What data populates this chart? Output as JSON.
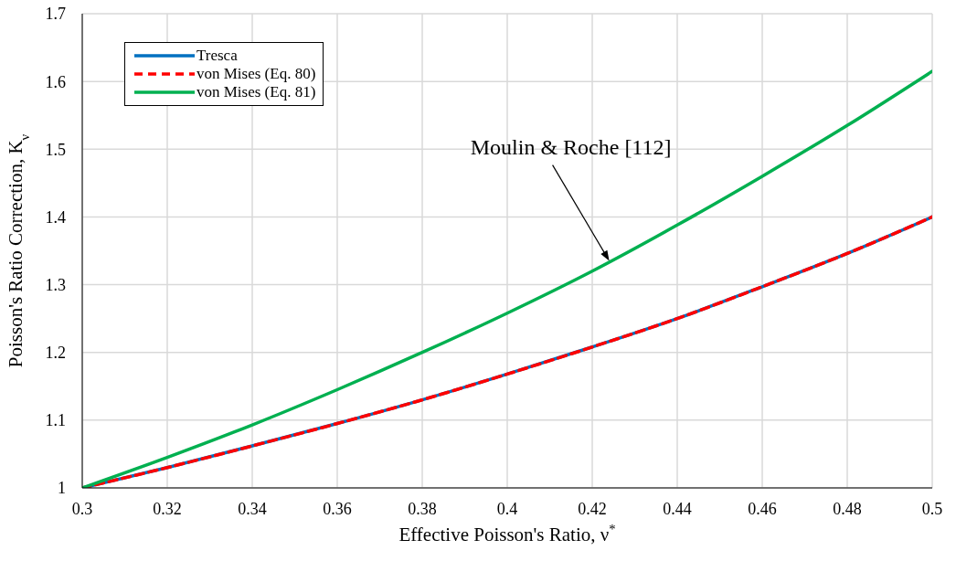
{
  "chart_data": {
    "type": "line",
    "xlabel": "Effective Poisson's Ratio, ν$^{*}$",
    "ylabel": "Poisson's Ratio Correction, K$_{ν}$",
    "x": [
      0.3,
      0.32,
      0.34,
      0.36,
      0.38,
      0.4,
      0.42,
      0.44,
      0.46,
      0.48,
      0.5
    ],
    "series": [
      {
        "name": "Tresca",
        "color": "#0070c0",
        "values": [
          1.0,
          1.03,
          1.062,
          1.095,
          1.13,
          1.168,
          1.208,
          1.25,
          1.297,
          1.346,
          1.4
        ]
      },
      {
        "name": "von Mises (Eq. 80)",
        "color": "#ff0000",
        "line_style": "dashed",
        "values": [
          1.0,
          1.03,
          1.062,
          1.095,
          1.13,
          1.168,
          1.208,
          1.25,
          1.297,
          1.346,
          1.4
        ]
      },
      {
        "name": "von Mises (Eq. 81)",
        "color": "#00b050",
        "values": [
          1.0,
          1.045,
          1.093,
          1.145,
          1.2,
          1.258,
          1.32,
          1.388,
          1.46,
          1.535,
          1.615
        ]
      }
    ],
    "xlim": [
      0.3,
      0.5
    ],
    "xticks": [
      0.3,
      0.32,
      0.34,
      0.36,
      0.38,
      0.4,
      0.42,
      0.44,
      0.46,
      0.48,
      0.5
    ],
    "ylim": [
      1,
      1.7
    ],
    "yticks": [
      1,
      1.1,
      1.2,
      1.3,
      1.4,
      1.5,
      1.6,
      1.7
    ],
    "grid": true,
    "legend": "top left",
    "marker": "none",
    "line_style": "solid",
    "annotations": [
      {
        "text": "Moulin & Roche [112]",
        "x": 0.424,
        "y": 1.335
      }
    ]
  }
}
